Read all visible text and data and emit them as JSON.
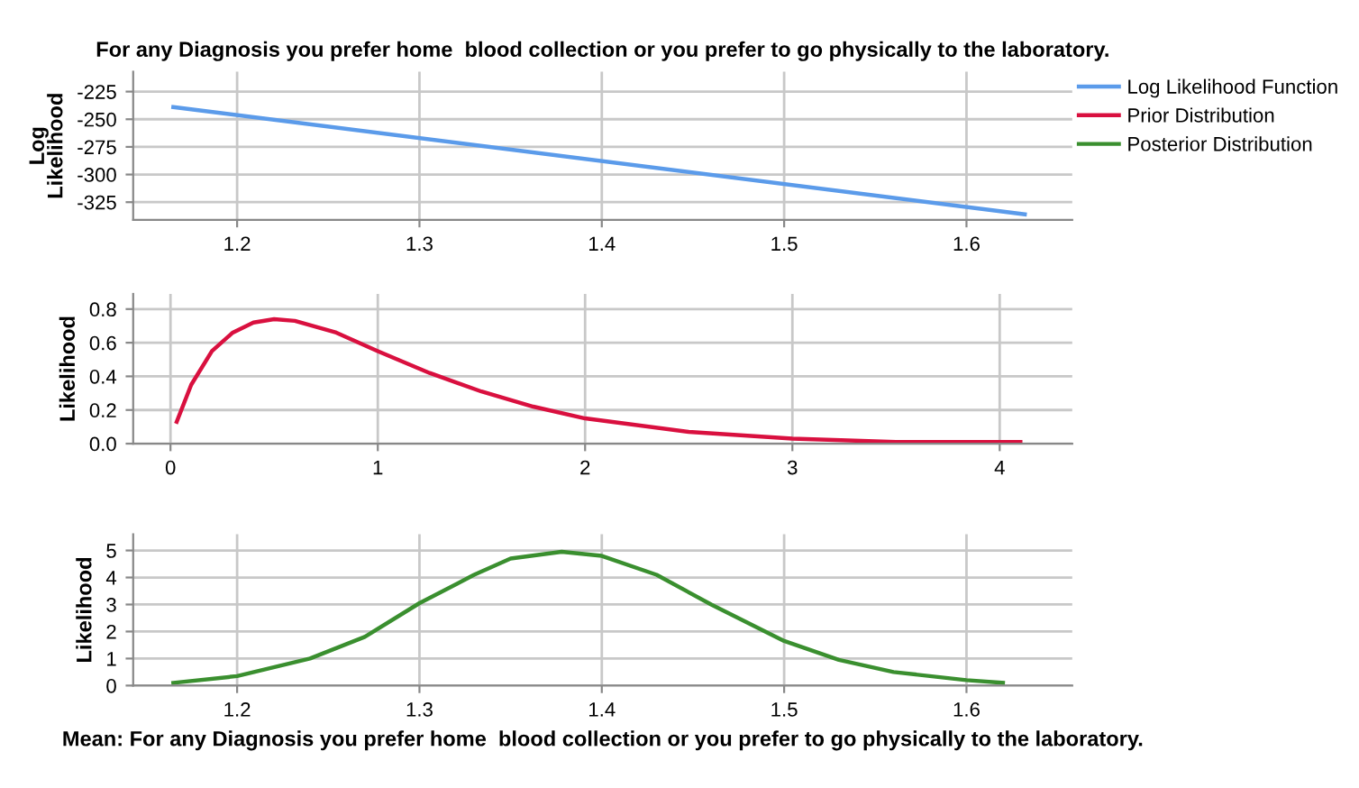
{
  "chart_data": [
    {
      "type": "line",
      "title": "For any Diagnosis you prefer home  blood collection or you prefer to go physically to the laboratory.",
      "ylabel": "Log\nLikelihood",
      "xlim": [
        1.143,
        1.658
      ],
      "xticks": [
        {
          "value": 1.2,
          "label": "1.2"
        },
        {
          "value": 1.3,
          "label": "1.3"
        },
        {
          "value": 1.4,
          "label": "1.4"
        },
        {
          "value": 1.5,
          "label": "1.5"
        },
        {
          "value": 1.6,
          "label": "1.6"
        }
      ],
      "ylim": [
        -341,
        -207
      ],
      "yticks": [
        -225,
        -250,
        -275,
        -300,
        -325
      ],
      "grid": true,
      "legend": "right",
      "series": [
        {
          "name": "Log Likelihood Function",
          "color": "#5b9bea",
          "x": [
            1.165,
            1.632
          ],
          "values": [
            -239,
            -336
          ]
        }
      ]
    },
    {
      "type": "line",
      "ylabel": "Likelihood",
      "xlim": [
        -0.18,
        4.35
      ],
      "xticks": [
        0,
        1,
        2,
        3,
        4
      ],
      "ylim": [
        0,
        0.89
      ],
      "yticks": [
        {
          "value": 0,
          "label": "0.0"
        },
        {
          "value": 0.2,
          "label": "0.2"
        },
        {
          "value": 0.4,
          "label": "0.4"
        },
        {
          "value": 0.6,
          "label": "0.6"
        },
        {
          "value": 0.8,
          "label": "0.8"
        }
      ],
      "grid": true,
      "legend": "right",
      "series": [
        {
          "name": "Prior Distribution",
          "color": "#d9103f",
          "x": [
            0.03,
            0.1,
            0.2,
            0.3,
            0.4,
            0.5,
            0.6,
            0.8,
            1.0,
            1.25,
            1.5,
            1.75,
            2.0,
            2.5,
            3.0,
            3.5,
            4.1
          ],
          "values": [
            0.13,
            0.35,
            0.55,
            0.66,
            0.72,
            0.74,
            0.73,
            0.66,
            0.55,
            0.42,
            0.31,
            0.22,
            0.15,
            0.07,
            0.03,
            0.01,
            0.01
          ]
        }
      ]
    },
    {
      "type": "line",
      "ylabel": "Likelihood",
      "xlabel": "Mean: For any Diagnosis you prefer home  blood collection or you prefer to go physically to the laboratory.",
      "xlim": [
        1.143,
        1.658
      ],
      "xticks": [
        {
          "value": 1.2,
          "label": "1.2"
        },
        {
          "value": 1.3,
          "label": "1.3"
        },
        {
          "value": 1.4,
          "label": "1.4"
        },
        {
          "value": 1.5,
          "label": "1.5"
        },
        {
          "value": 1.6,
          "label": "1.6"
        }
      ],
      "ylim": [
        0,
        5.6
      ],
      "yticks": [
        0,
        1,
        2,
        3,
        4,
        5
      ],
      "grid": true,
      "legend": "right",
      "series": [
        {
          "name": "Posterior Distribution",
          "color": "#3a8f2f",
          "x": [
            1.165,
            1.2,
            1.24,
            1.27,
            1.3,
            1.33,
            1.35,
            1.378,
            1.4,
            1.43,
            1.46,
            1.5,
            1.53,
            1.56,
            1.6,
            1.62
          ],
          "values": [
            0.1,
            0.35,
            1.0,
            1.8,
            3.05,
            4.1,
            4.7,
            4.95,
            4.8,
            4.1,
            3.0,
            1.65,
            0.95,
            0.5,
            0.2,
            0.1
          ]
        }
      ]
    }
  ]
}
